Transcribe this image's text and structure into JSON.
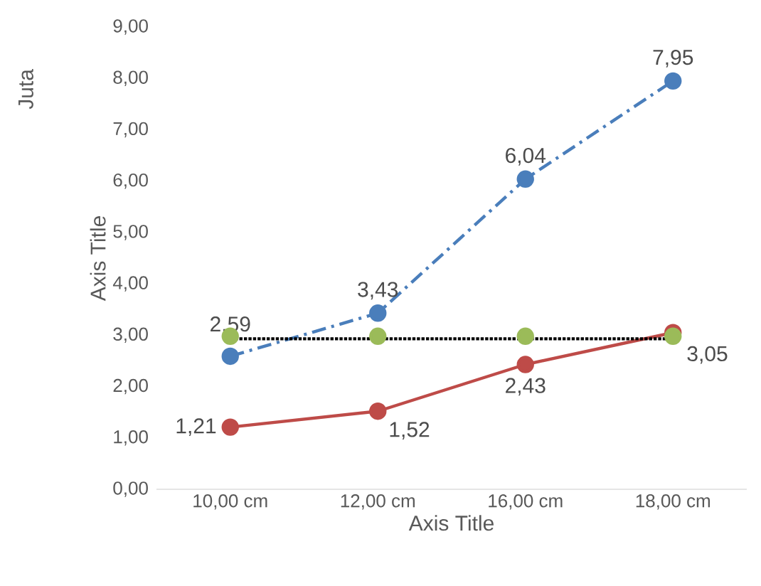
{
  "chart_data": {
    "type": "line",
    "xlabel": "Axis Title",
    "ylabel": "Axis Title",
    "annotations": [
      "Juta"
    ],
    "categories": [
      "10,00 cm",
      "12,00 cm",
      "16,00 cm",
      "18,00 cm"
    ],
    "ylim": [
      0,
      9
    ],
    "yticks": [
      {
        "value": 0,
        "label": "0,00"
      },
      {
        "value": 1,
        "label": "1,00"
      },
      {
        "value": 2,
        "label": "2,00"
      },
      {
        "value": 3,
        "label": "3,00"
      },
      {
        "value": 4,
        "label": "4,00"
      },
      {
        "value": 5,
        "label": "5,00"
      },
      {
        "value": 6,
        "label": "6,00"
      },
      {
        "value": 7,
        "label": "7,00"
      },
      {
        "value": 8,
        "label": "8,00"
      },
      {
        "value": 9,
        "label": "9,00"
      }
    ],
    "grid": false,
    "series": [
      {
        "color": "#4a7ebb",
        "values": [
          2.59,
          3.43,
          6.04,
          7.95
        ],
        "value_labels": [
          "2,59",
          "3,43",
          "6,04",
          "7,95"
        ],
        "line_style": "dashdot",
        "marker": "circle"
      },
      {
        "color": "#be4b48",
        "values": [
          1.21,
          1.52,
          2.43,
          3.05
        ],
        "value_labels": [
          "1,21",
          "1,52",
          "2,43",
          "3,05"
        ],
        "line_style": "solid",
        "marker": "circle"
      },
      {
        "color": "#000000",
        "values": [
          2.93,
          2.93,
          2.93,
          2.93
        ],
        "line_style": "dotted",
        "marker": "none"
      },
      {
        "type": "scatter",
        "color": "#9bbb59",
        "values": [
          2.98,
          2.98,
          2.98,
          2.98
        ],
        "marker": "circle"
      }
    ]
  }
}
